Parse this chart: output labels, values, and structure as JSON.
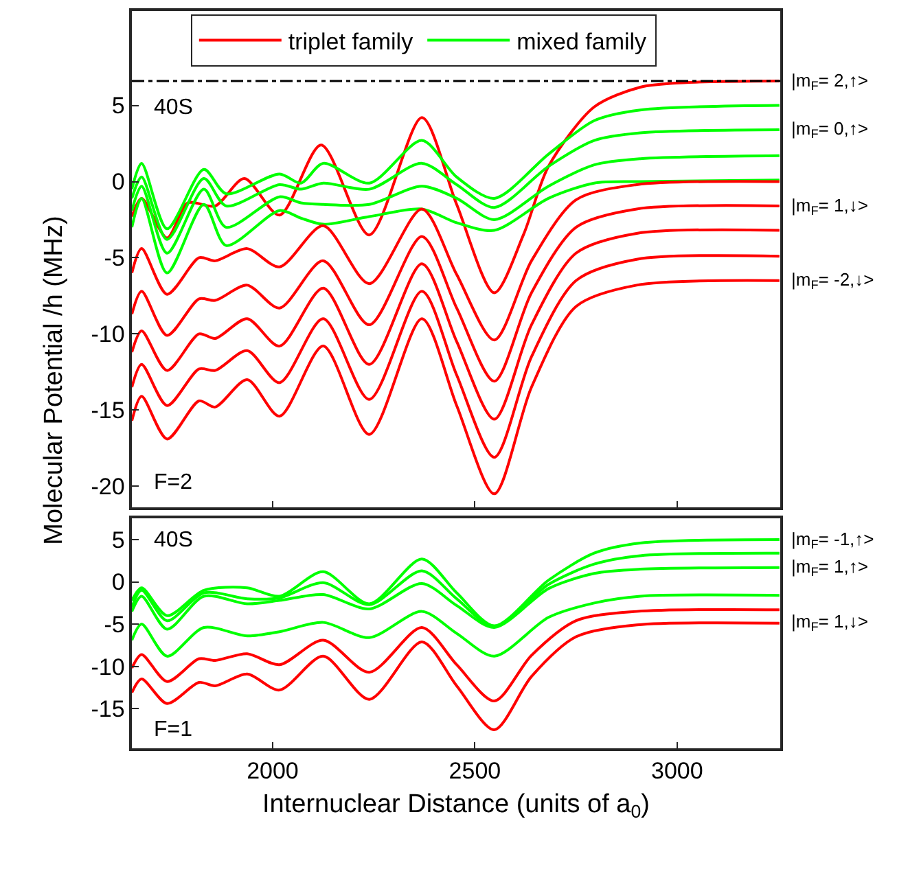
{
  "chart_data": [
    {
      "type": "line",
      "ylabel": "Molecular Potential /h (MHz)",
      "xlim": [
        1652,
        3255
      ],
      "xticks": [
        {
          "value": 2000,
          "label": null
        },
        {
          "value": 2500,
          "label": null
        },
        {
          "value": 3000,
          "label": null
        }
      ],
      "ylim": [
        -21.4,
        11.2
      ],
      "yticks": [
        5,
        0,
        -5,
        -10,
        -15,
        -20
      ],
      "tick_labels": "y",
      "legend": "top",
      "grid": false,
      "marker": "none",
      "line_style": "solid",
      "ref_lines": [
        {
          "axis": "y",
          "value": 6.6,
          "color": "#000000",
          "line_style": "dashdot"
        }
      ],
      "annotations": [
        "40S",
        "F=2",
        "|m$_{F}$= 2,↑>",
        "|m$_{F}$= 0,↑>",
        "|m$_{F}$= 1,↓>",
        "|m$_{F}$= -2,↓>"
      ],
      "series": [
        {
          "name": "triplet family",
          "color": "#ff0000",
          "x": [
            1652,
            1676,
            1739,
            1790,
            1858,
            1930,
            2017,
            2120,
            2239,
            2369,
            2455,
            2548,
            2620,
            2682,
            2795,
            2909,
            3023,
            3253
          ],
          "values": [
            -2.3,
            -1.1,
            -3.7,
            -1.4,
            -1.6,
            0.2,
            -2.2,
            2.4,
            -3.5,
            4.2,
            -1.5,
            -7.3,
            -3.5,
            1.0,
            4.9,
            6.2,
            6.5,
            6.6
          ]
        },
        {
          "name": "mixed family",
          "color": "#00ff00",
          "x": [
            1652,
            1676,
            1739,
            1830,
            1885,
            2017,
            2070,
            2125,
            2239,
            2369,
            2455,
            2548,
            2682,
            2795,
            2909,
            3253
          ],
          "values": [
            -0.5,
            1.2,
            -3.1,
            0.8,
            -0.8,
            0.5,
            -0.1,
            1.2,
            -0.1,
            2.7,
            0.3,
            -1.1,
            1.8,
            4.0,
            4.7,
            5.0
          ]
        },
        {
          "color": "#00ff00",
          "x": [
            1652,
            1676,
            1739,
            1830,
            1885,
            2017,
            2070,
            2125,
            2239,
            2369,
            2455,
            2548,
            2682,
            2795,
            2909,
            3253
          ],
          "values": [
            -1.1,
            0.3,
            -3.8,
            0.2,
            -1.6,
            -0.2,
            -0.5,
            -0.1,
            -0.5,
            1.2,
            -0.2,
            -1.7,
            1.0,
            2.7,
            3.2,
            3.4
          ]
        },
        {
          "color": "#00ff00",
          "x": [
            1652,
            1676,
            1739,
            1830,
            1885,
            2017,
            2070,
            2125,
            2239,
            2369,
            2455,
            2548,
            2682,
            2795,
            2909,
            3253
          ],
          "values": [
            -1.9,
            -0.3,
            -4.7,
            -0.5,
            -3.0,
            -1.0,
            -1.4,
            -1.5,
            -1.5,
            -0.3,
            -1.1,
            -2.5,
            -0.3,
            1.1,
            1.5,
            1.7
          ]
        },
        {
          "color": "#00ff00",
          "x": [
            1652,
            1676,
            1739,
            1830,
            1885,
            2017,
            2070,
            2125,
            2239,
            2369,
            2455,
            2548,
            2682,
            2795,
            2909,
            3253
          ],
          "values": [
            -3.0,
            -1.1,
            -6.0,
            -1.5,
            -4.2,
            -1.9,
            -2.4,
            -2.8,
            -2.3,
            -1.8,
            -2.7,
            -3.2,
            -1.1,
            -0.1,
            0.0,
            0.1
          ]
        },
        {
          "color": "#ff0000",
          "x": [
            1652,
            1676,
            1739,
            1818,
            1858,
            1937,
            2017,
            2125,
            2239,
            2369,
            2455,
            2548,
            2640,
            2750,
            2900,
            3253
          ],
          "values": [
            -6.0,
            -4.4,
            -7.4,
            -5.0,
            -5.2,
            -4.4,
            -5.6,
            -2.9,
            -6.7,
            -1.8,
            -6.1,
            -10.4,
            -5.2,
            -1.2,
            -0.2,
            0.0
          ]
        },
        {
          "color": "#ff0000",
          "x": [
            1652,
            1676,
            1739,
            1818,
            1858,
            1937,
            2017,
            2125,
            2239,
            2369,
            2455,
            2548,
            2640,
            2750,
            2900,
            3253
          ],
          "values": [
            -8.7,
            -7.2,
            -10.1,
            -7.7,
            -7.8,
            -6.8,
            -8.3,
            -5.2,
            -9.4,
            -3.6,
            -8.3,
            -13.1,
            -7.3,
            -3.0,
            -1.8,
            -1.6
          ]
        },
        {
          "color": "#ff0000",
          "x": [
            1652,
            1676,
            1739,
            1818,
            1858,
            1937,
            2017,
            2125,
            2239,
            2369,
            2455,
            2548,
            2640,
            2750,
            2900,
            3253
          ],
          "values": [
            -11.2,
            -9.8,
            -12.4,
            -10.0,
            -10.3,
            -9.0,
            -10.8,
            -7.0,
            -12.0,
            -5.4,
            -10.5,
            -15.6,
            -9.4,
            -4.7,
            -3.4,
            -3.2
          ]
        },
        {
          "color": "#ff0000",
          "x": [
            1652,
            1676,
            1739,
            1818,
            1858,
            1937,
            2017,
            2125,
            2239,
            2369,
            2455,
            2548,
            2640,
            2750,
            2900,
            3253
          ],
          "values": [
            -13.5,
            -12.0,
            -14.7,
            -12.3,
            -12.4,
            -11.1,
            -13.2,
            -9.0,
            -14.3,
            -7.2,
            -12.7,
            -18.1,
            -11.5,
            -6.5,
            -5.1,
            -4.9
          ]
        },
        {
          "color": "#ff0000",
          "x": [
            1652,
            1676,
            1739,
            1818,
            1858,
            1937,
            2017,
            2125,
            2239,
            2369,
            2455,
            2548,
            2640,
            2750,
            2900,
            3253
          ],
          "values": [
            -15.7,
            -14.1,
            -16.9,
            -14.4,
            -14.8,
            -13.0,
            -15.4,
            -10.8,
            -16.6,
            -9.0,
            -14.7,
            -20.5,
            -13.5,
            -8.2,
            -6.8,
            -6.5
          ]
        }
      ]
    },
    {
      "type": "line",
      "xlabel": "Internuclear Distance (units of a$_{0}$)",
      "xlim": [
        1652,
        3255
      ],
      "xticks": [
        2000,
        2500,
        3000
      ],
      "ylim": [
        -19.7,
        7.5
      ],
      "yticks": [
        5,
        0,
        -5,
        -10,
        -15
      ],
      "grid": false,
      "marker": "none",
      "line_style": "solid",
      "annotations": [
        "40S",
        "F=1",
        "|m$_{F}$= -1,↑>",
        "|m$_{F}$= 1,↑>",
        "|m$_{F}$= 1,↓>"
      ],
      "series": [
        {
          "color": "#00ff00",
          "x": [
            1652,
            1676,
            1739,
            1830,
            1937,
            2017,
            2125,
            2239,
            2369,
            2455,
            2548,
            2682,
            2795,
            2909,
            3253
          ],
          "values": [
            -2.2,
            -0.7,
            -4.0,
            -1.0,
            -0.7,
            -1.7,
            1.2,
            -2.6,
            2.7,
            -1.3,
            -5.2,
            0.2,
            3.4,
            4.6,
            5.0
          ]
        },
        {
          "color": "#00ff00",
          "x": [
            1652,
            1676,
            1739,
            1830,
            1937,
            2017,
            2125,
            2239,
            2369,
            2455,
            2548,
            2682,
            2795,
            2909,
            3253
          ],
          "values": [
            -3.0,
            -1.0,
            -4.6,
            -1.3,
            -2.0,
            -1.9,
            -0.1,
            -2.7,
            1.3,
            -2.0,
            -5.3,
            -0.3,
            2.1,
            3.1,
            3.4
          ]
        },
        {
          "color": "#00ff00",
          "x": [
            1652,
            1676,
            1739,
            1830,
            1937,
            2017,
            2125,
            2239,
            2369,
            2455,
            2548,
            2682,
            2795,
            2909,
            3253
          ],
          "values": [
            -3.5,
            -1.7,
            -5.6,
            -1.7,
            -2.6,
            -2.2,
            -1.5,
            -3.2,
            -0.2,
            -2.8,
            -5.4,
            -0.8,
            1.0,
            1.5,
            1.7
          ]
        },
        {
          "color": "#00ff00",
          "x": [
            1652,
            1676,
            1739,
            1830,
            1937,
            2017,
            2125,
            2239,
            2369,
            2455,
            2548,
            2682,
            2795,
            2909,
            3253
          ],
          "values": [
            -6.9,
            -5.0,
            -8.8,
            -5.4,
            -6.4,
            -5.9,
            -4.8,
            -6.6,
            -3.5,
            -6.1,
            -8.8,
            -4.2,
            -2.5,
            -1.7,
            -1.6
          ]
        },
        {
          "color": "#ff0000",
          "x": [
            1652,
            1676,
            1739,
            1818,
            1858,
            1937,
            2017,
            2125,
            2239,
            2369,
            2455,
            2548,
            2640,
            2750,
            2900,
            3253
          ],
          "values": [
            -10.2,
            -8.6,
            -11.8,
            -9.1,
            -9.3,
            -8.5,
            -9.8,
            -6.9,
            -10.7,
            -5.4,
            -9.8,
            -14.1,
            -8.7,
            -4.6,
            -3.5,
            -3.3
          ]
        },
        {
          "color": "#ff0000",
          "x": [
            1652,
            1676,
            1739,
            1818,
            1858,
            1937,
            2017,
            2125,
            2239,
            2369,
            2455,
            2548,
            2640,
            2750,
            2900,
            3253
          ],
          "values": [
            -13.1,
            -11.5,
            -14.4,
            -11.9,
            -12.3,
            -10.9,
            -12.8,
            -8.8,
            -13.9,
            -7.1,
            -12.3,
            -17.5,
            -11.2,
            -6.5,
            -5.1,
            -4.9
          ]
        }
      ]
    }
  ]
}
